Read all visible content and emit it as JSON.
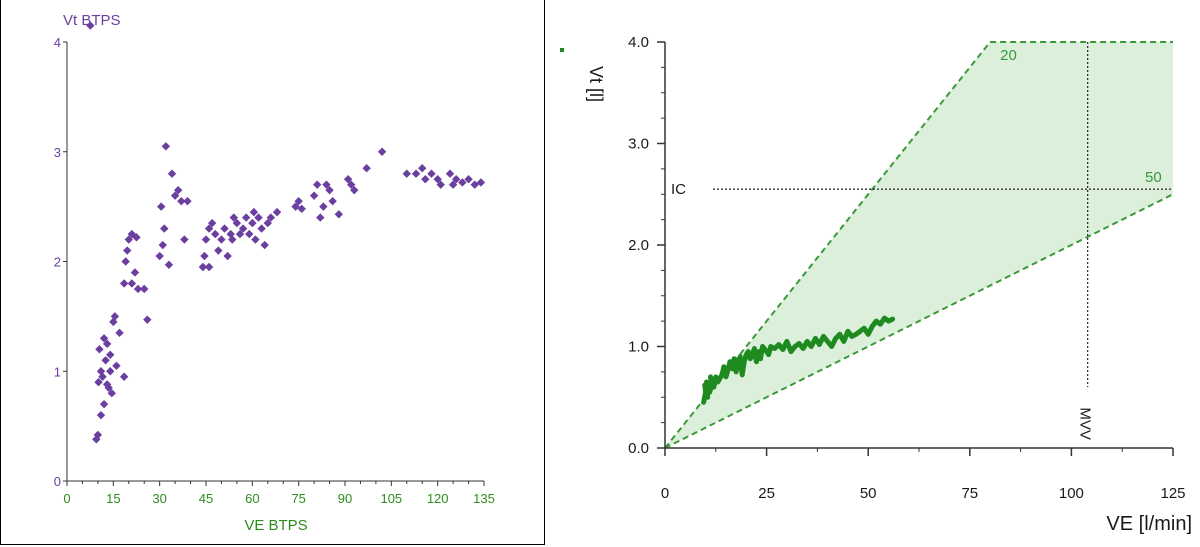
{
  "chart_data": [
    {
      "type": "scatter",
      "xlabel": "VE BTPS",
      "ylabel": "Vt BTPS",
      "xlim": [
        0,
        135
      ],
      "ylim": [
        0,
        4
      ],
      "xticks": [
        "0",
        "15",
        "30",
        "45",
        "60",
        "75",
        "90",
        "105",
        "120",
        "135"
      ],
      "yticks": [
        "0",
        "1",
        "2",
        "3",
        "4"
      ],
      "colors": {
        "points": "#6a3fa0",
        "labels": "#6a3fa0",
        "xlabels": "#2e8b1e"
      },
      "points": [
        [
          9.5,
          0.38
        ],
        [
          10,
          0.42
        ],
        [
          10.2,
          0.9
        ],
        [
          10.5,
          1.2
        ],
        [
          11,
          0.6
        ],
        [
          11,
          1.0
        ],
        [
          11.5,
          0.95
        ],
        [
          12,
          0.7
        ],
        [
          12,
          1.3
        ],
        [
          12.5,
          1.1
        ],
        [
          13,
          1.25
        ],
        [
          13,
          0.88
        ],
        [
          13.5,
          0.85
        ],
        [
          14,
          1.0
        ],
        [
          14,
          1.15
        ],
        [
          14.5,
          0.8
        ],
        [
          15,
          1.45
        ],
        [
          15.5,
          1.5
        ],
        [
          16,
          1.05
        ],
        [
          17,
          1.35
        ],
        [
          18.5,
          0.95
        ],
        [
          18.5,
          1.8
        ],
        [
          19,
          2.0
        ],
        [
          19.5,
          2.1
        ],
        [
          20,
          2.2
        ],
        [
          21,
          1.8
        ],
        [
          21,
          2.25
        ],
        [
          22,
          1.9
        ],
        [
          22.5,
          2.22
        ],
        [
          23,
          1.75
        ],
        [
          25,
          1.75
        ],
        [
          26,
          1.47
        ],
        [
          30,
          2.05
        ],
        [
          30.5,
          2.5
        ],
        [
          31,
          2.15
        ],
        [
          31.5,
          2.3
        ],
        [
          32,
          3.05
        ],
        [
          33,
          1.97
        ],
        [
          34,
          2.8
        ],
        [
          35,
          2.6
        ],
        [
          36,
          2.65
        ],
        [
          37,
          2.55
        ],
        [
          38,
          2.2
        ],
        [
          39,
          2.55
        ],
        [
          44,
          1.95
        ],
        [
          44.5,
          2.05
        ],
        [
          45,
          2.2
        ],
        [
          46,
          1.95
        ],
        [
          46,
          2.3
        ],
        [
          47,
          2.35
        ],
        [
          48,
          2.25
        ],
        [
          49,
          2.1
        ],
        [
          50,
          2.2
        ],
        [
          51,
          2.3
        ],
        [
          52,
          2.05
        ],
        [
          53,
          2.25
        ],
        [
          53.5,
          2.2
        ],
        [
          54,
          2.4
        ],
        [
          55,
          2.35
        ],
        [
          56,
          2.25
        ],
        [
          57,
          2.3
        ],
        [
          58,
          2.4
        ],
        [
          59,
          2.25
        ],
        [
          60,
          2.35
        ],
        [
          60.5,
          2.45
        ],
        [
          61,
          2.2
        ],
        [
          62,
          2.4
        ],
        [
          63,
          2.3
        ],
        [
          64,
          2.15
        ],
        [
          65,
          2.35
        ],
        [
          66,
          2.4
        ],
        [
          68,
          2.45
        ],
        [
          74,
          2.5
        ],
        [
          75,
          2.55
        ],
        [
          76,
          2.48
        ],
        [
          80,
          2.6
        ],
        [
          81,
          2.7
        ],
        [
          82,
          2.4
        ],
        [
          83,
          2.5
        ],
        [
          84,
          2.7
        ],
        [
          85,
          2.65
        ],
        [
          86,
          2.55
        ],
        [
          88,
          2.43
        ],
        [
          91,
          2.75
        ],
        [
          92,
          2.7
        ],
        [
          93,
          2.65
        ],
        [
          97,
          2.85
        ],
        [
          102,
          3.0
        ],
        [
          110,
          2.8
        ],
        [
          113,
          2.8
        ],
        [
          115,
          2.85
        ],
        [
          116,
          2.75
        ],
        [
          118,
          2.8
        ],
        [
          120,
          2.75
        ],
        [
          121,
          2.7
        ],
        [
          124,
          2.8
        ],
        [
          125,
          2.7
        ],
        [
          126,
          2.75
        ],
        [
          128,
          2.72
        ],
        [
          130,
          2.75
        ],
        [
          132,
          2.7
        ],
        [
          134,
          2.72
        ]
      ],
      "extra_point": [
        9.5,
        4.15
      ]
    },
    {
      "type": "line",
      "xlabel": "VE [l/min]",
      "ylabel": "Vt [l]",
      "xlim": [
        0,
        125
      ],
      "ylim": [
        0,
        4
      ],
      "xticks": [
        "0",
        "25",
        "50",
        "75",
        "100",
        "125"
      ],
      "yticks": [
        "0.0",
        "1.0",
        "2.0",
        "3.0",
        "4.0"
      ],
      "annotations": {
        "ic": "IC",
        "mvv": "MVV",
        "rr20": "20",
        "rr50": "50"
      },
      "ic_value": 2.55,
      "mvv_value": 104,
      "fan_rates": [
        20,
        50
      ],
      "colors": {
        "line": "#1f8a1f",
        "fan": "#3a9a3a",
        "fill": "#cfe9cf"
      },
      "series": [
        {
          "x": [
            9.5,
            10,
            9.8,
            10.5,
            10.2,
            11,
            11.5,
            11.2,
            12,
            12.5,
            13,
            14,
            14.5,
            15,
            16,
            16.5,
            17,
            17.5,
            18,
            18.5,
            19,
            19.5,
            20,
            20.5,
            21,
            21.5,
            22,
            22.5,
            23,
            23.5,
            24,
            25,
            25.5,
            26,
            27,
            28,
            29,
            30,
            31,
            32,
            33,
            34,
            35,
            36,
            37,
            38,
            39,
            40,
            41,
            42,
            43,
            44,
            45,
            46,
            47,
            48,
            49,
            50,
            51,
            52,
            53,
            54,
            55,
            56
          ],
          "y": [
            0.45,
            0.55,
            0.62,
            0.5,
            0.65,
            0.55,
            0.62,
            0.7,
            0.6,
            0.7,
            0.65,
            0.72,
            0.8,
            0.7,
            0.85,
            0.78,
            0.88,
            0.75,
            0.82,
            0.9,
            0.72,
            0.85,
            0.92,
            0.95,
            0.88,
            0.92,
            0.98,
            0.85,
            0.95,
            0.88,
            1.0,
            0.95,
            0.92,
            1.0,
            0.98,
            1.02,
            0.97,
            1.05,
            0.95,
            1.0,
            1.03,
            0.98,
            1.05,
            1.0,
            1.08,
            1.02,
            1.1,
            1.05,
            1.0,
            1.08,
            1.12,
            1.05,
            1.15,
            1.1,
            1.12,
            1.15,
            1.18,
            1.12,
            1.2,
            1.25,
            1.22,
            1.28,
            1.25,
            1.27
          ]
        }
      ]
    }
  ]
}
